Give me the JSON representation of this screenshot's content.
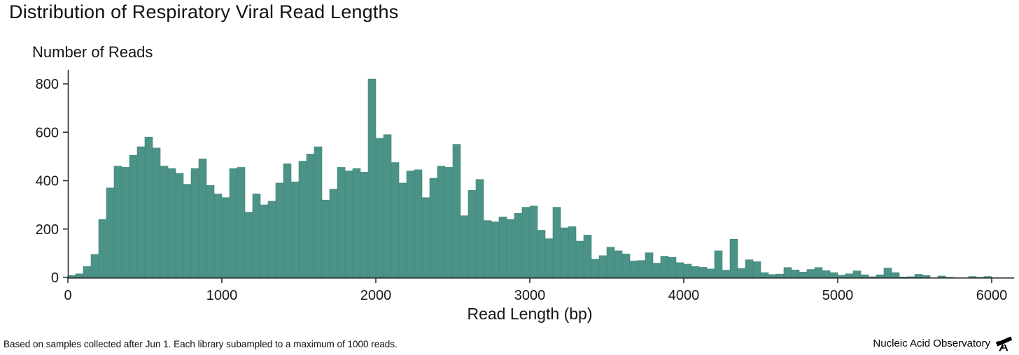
{
  "header": {
    "title": "Distribution of Respiratory Viral Read Lengths"
  },
  "chart_data": {
    "type": "bar",
    "title": "Distribution of Respiratory Viral Read Lengths",
    "ylabel": "Number of Reads",
    "xlabel": "Read Length (bp)",
    "bin_width_bp": 50,
    "x_bin_starts": [
      0,
      50,
      100,
      150,
      200,
      250,
      300,
      350,
      400,
      450,
      500,
      550,
      600,
      650,
      700,
      750,
      800,
      850,
      900,
      950,
      1000,
      1050,
      1100,
      1150,
      1200,
      1250,
      1300,
      1350,
      1400,
      1450,
      1500,
      1550,
      1600,
      1650,
      1700,
      1750,
      1800,
      1850,
      1900,
      1950,
      2000,
      2050,
      2100,
      2150,
      2200,
      2250,
      2300,
      2350,
      2400,
      2450,
      2500,
      2550,
      2600,
      2650,
      2700,
      2750,
      2800,
      2850,
      2900,
      2950,
      3000,
      3050,
      3100,
      3150,
      3200,
      3250,
      3300,
      3350,
      3400,
      3450,
      3500,
      3550,
      3600,
      3650,
      3700,
      3750,
      3800,
      3850,
      3900,
      3950,
      4000,
      4050,
      4100,
      4150,
      4200,
      4250,
      4300,
      4350,
      4400,
      4450,
      4500,
      4550,
      4600,
      4650,
      4700,
      4750,
      4800,
      4850,
      4900,
      4950,
      5000,
      5050,
      5100,
      5150,
      5200,
      5250,
      5300,
      5350,
      5400,
      5450,
      5500,
      5550,
      5600,
      5650,
      5700,
      5750,
      5800,
      5850,
      5900,
      5950
    ],
    "values": [
      8,
      15,
      45,
      95,
      240,
      370,
      460,
      455,
      505,
      540,
      580,
      535,
      460,
      450,
      430,
      385,
      450,
      490,
      380,
      345,
      330,
      450,
      455,
      270,
      345,
      300,
      315,
      390,
      470,
      395,
      480,
      510,
      540,
      320,
      365,
      455,
      440,
      450,
      435,
      820,
      575,
      590,
      475,
      390,
      440,
      445,
      330,
      410,
      460,
      455,
      550,
      255,
      360,
      405,
      235,
      230,
      250,
      240,
      265,
      290,
      295,
      195,
      160,
      290,
      205,
      210,
      150,
      175,
      75,
      90,
      125,
      110,
      97,
      68,
      70,
      102,
      59,
      88,
      83,
      61,
      55,
      45,
      42,
      35,
      110,
      30,
      158,
      37,
      73,
      65,
      20,
      12,
      14,
      41,
      31,
      22,
      33,
      41,
      28,
      20,
      9,
      15,
      27,
      11,
      3,
      11,
      39,
      20,
      2,
      3,
      13,
      8,
      0,
      6,
      1,
      0,
      0,
      4,
      1,
      4
    ],
    "x_ticks": [
      0,
      1000,
      2000,
      3000,
      4000,
      5000,
      6000
    ],
    "y_ticks": [
      0,
      200,
      400,
      600,
      800
    ],
    "xlim": [
      0,
      6000
    ],
    "ylim": [
      0,
      830
    ],
    "grid": false,
    "legend_position": "none",
    "bar_color": "#4b9287",
    "bar_edge_color": "#3f867b",
    "axis_color": "#2f2f2f"
  },
  "footer": {
    "note": "Based on samples collected after Jun 1.  Each library subampled to a maximum of 1000 reads.",
    "brand": "Nucleic Acid Observatory",
    "brand_icon": "telescope-icon",
    "brand_color": "#000000"
  }
}
